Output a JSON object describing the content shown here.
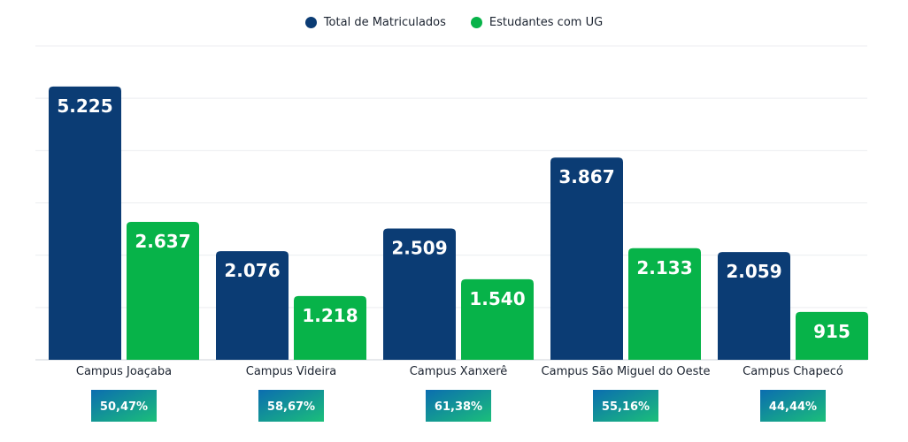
{
  "chart_data": {
    "type": "bar",
    "categories": [
      "Campus Joaçaba",
      "Campus Videira",
      "Campus Xanxerê",
      "Campus São Miguel do Oeste",
      "Campus Chapecó"
    ],
    "series": [
      {
        "name": "Total de Matriculados",
        "values": [
          5225,
          2076,
          2509,
          3867,
          2059
        ],
        "labels": [
          "5.225",
          "2.076",
          "2.509",
          "3.867",
          "2.059"
        ],
        "color": "#0b3c74"
      },
      {
        "name": "Estudantes com UG",
        "values": [
          2637,
          1218,
          1540,
          2133,
          915
        ],
        "labels": [
          "2.637",
          "1.218",
          "1.540",
          "2.133",
          "915"
        ],
        "color": "#07b349"
      }
    ],
    "percentages": [
      "50,47%",
      "58,67%",
      "61,38%",
      "55,16%",
      "44,44%"
    ],
    "ylim": [
      0,
      6000
    ],
    "grid": true,
    "legend_position": "top-center",
    "pct_badge_colors": [
      "#0b6db0",
      "#1bbf7a"
    ]
  }
}
